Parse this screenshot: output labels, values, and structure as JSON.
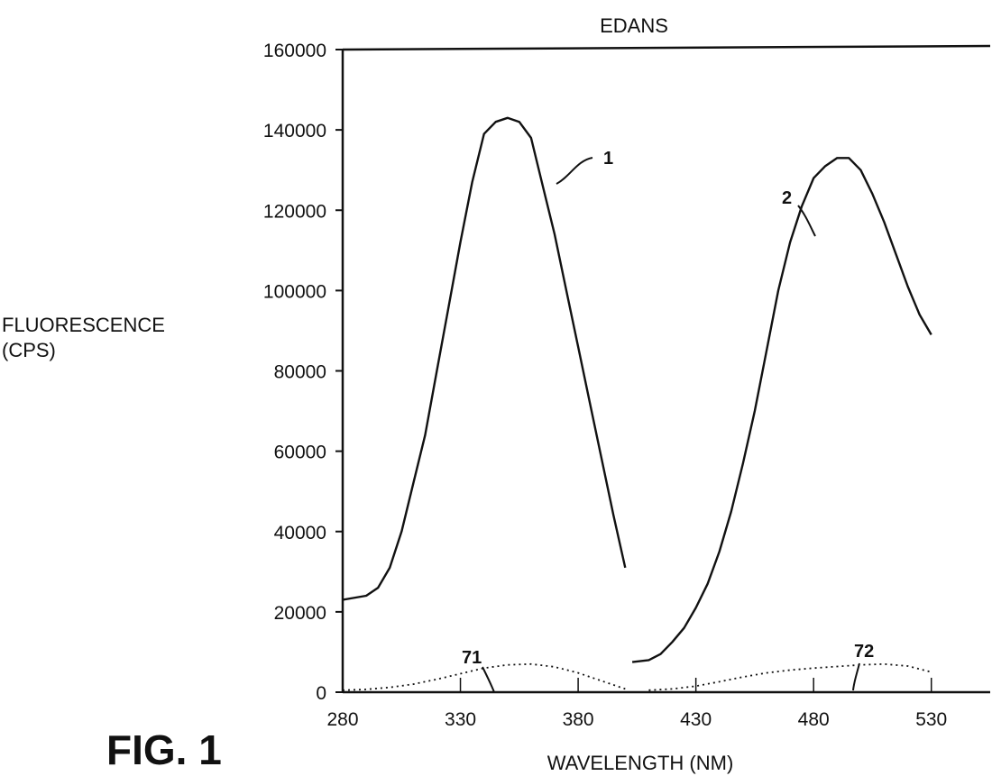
{
  "figure_label": "FIG. 1",
  "chart_data": {
    "type": "line",
    "title": "EDANS",
    "xlabel": "WAVELENGTH (NM)",
    "ylabel": [
      "FLUORESCENCE",
      "(CPS)"
    ],
    "xlim": [
      280,
      555
    ],
    "ylim": [
      0,
      160000
    ],
    "xticks": [
      280,
      330,
      380,
      430,
      480,
      530
    ],
    "yticks": [
      0,
      20000,
      40000,
      60000,
      80000,
      100000,
      120000,
      140000,
      160000
    ],
    "grid": false,
    "series": [
      {
        "name": "1",
        "style": "solid",
        "x": [
          280,
          290,
          295,
          300,
          305,
          310,
          315,
          320,
          325,
          330,
          335,
          340,
          345,
          350,
          355,
          360,
          365,
          370,
          375,
          380,
          385,
          390,
          395,
          400
        ],
        "y": [
          23000,
          24000,
          26000,
          31000,
          40000,
          52000,
          64000,
          80000,
          96000,
          112000,
          127000,
          139000,
          142000,
          143000,
          142000,
          138000,
          126000,
          114000,
          100000,
          86000,
          72000,
          58000,
          44000,
          31000
        ]
      },
      {
        "name": "2",
        "style": "solid",
        "x": [
          403,
          410,
          415,
          420,
          425,
          430,
          435,
          440,
          445,
          450,
          455,
          460,
          465,
          470,
          475,
          480,
          485,
          490,
          495,
          500,
          505,
          510,
          515,
          520,
          525,
          530
        ],
        "y": [
          7500,
          8000,
          9500,
          12500,
          16000,
          21000,
          27000,
          35000,
          45000,
          57000,
          70000,
          85000,
          100000,
          112000,
          121000,
          128000,
          131000,
          133000,
          133000,
          130000,
          124000,
          117000,
          109000,
          101000,
          94000,
          89000
        ]
      },
      {
        "name": "71",
        "style": "dotted",
        "x": [
          280,
          290,
          300,
          310,
          320,
          330,
          340,
          350,
          360,
          370,
          380,
          390,
          400
        ],
        "y": [
          500,
          700,
          1200,
          2000,
          3200,
          4600,
          6000,
          6800,
          7000,
          6300,
          4800,
          2800,
          800
        ]
      },
      {
        "name": "72",
        "style": "dotted",
        "x": [
          410,
          420,
          430,
          440,
          450,
          460,
          470,
          480,
          490,
          500,
          510,
          520,
          530
        ],
        "y": [
          500,
          800,
          1500,
          2600,
          3800,
          4800,
          5500,
          6000,
          6400,
          6800,
          7000,
          6500,
          5000
        ]
      }
    ],
    "annotations": [
      {
        "text": "1",
        "series": "1"
      },
      {
        "text": "2",
        "series": "2"
      },
      {
        "text": "71",
        "series": "71"
      },
      {
        "text": "72",
        "series": "72"
      }
    ]
  }
}
